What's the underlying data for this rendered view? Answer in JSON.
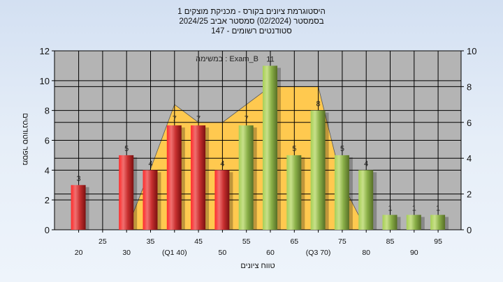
{
  "title_lines": [
    "היסטוגרמת ציונים בקורס - מכניקת מוצקים 1",
    "בסמסטר  (02/2024)  סמסטר אביב 2024/25",
    "סטודנטים רשומים - 147"
  ],
  "chart_data": {
    "type": "bar",
    "annotation": "במשימה : Exam_B",
    "xlabel": "טווח ציונים",
    "ylabel": "מספר סטודנטים",
    "categories": [
      "20",
      "25",
      "30",
      "35",
      "(Q1 40)",
      "45",
      "50",
      "55",
      "60",
      "65",
      "(Q3 70)",
      "75",
      "80",
      "85",
      "90",
      "95"
    ],
    "values": [
      3,
      0,
      5,
      4,
      7,
      7,
      4,
      7,
      11,
      5,
      8,
      5,
      4,
      1,
      1,
      1
    ],
    "bar_colors": {
      "below_55": "#e82020",
      "from_55": "#9cc24a"
    },
    "ylim": [
      0,
      12
    ],
    "yticks": [
      0,
      2,
      4,
      6,
      8,
      10,
      12
    ],
    "y2lim": [
      0,
      10
    ],
    "y2ticks": [
      0,
      2,
      4,
      6,
      8,
      10
    ],
    "area_series": {
      "axis": "right",
      "color": "#ffc94f",
      "values": [
        0,
        0,
        0,
        3.4,
        7,
        6,
        6,
        7,
        8,
        8,
        8,
        2.6,
        0,
        0,
        0,
        0
      ]
    },
    "grid": true,
    "plot_background": "#b4b4b4"
  }
}
